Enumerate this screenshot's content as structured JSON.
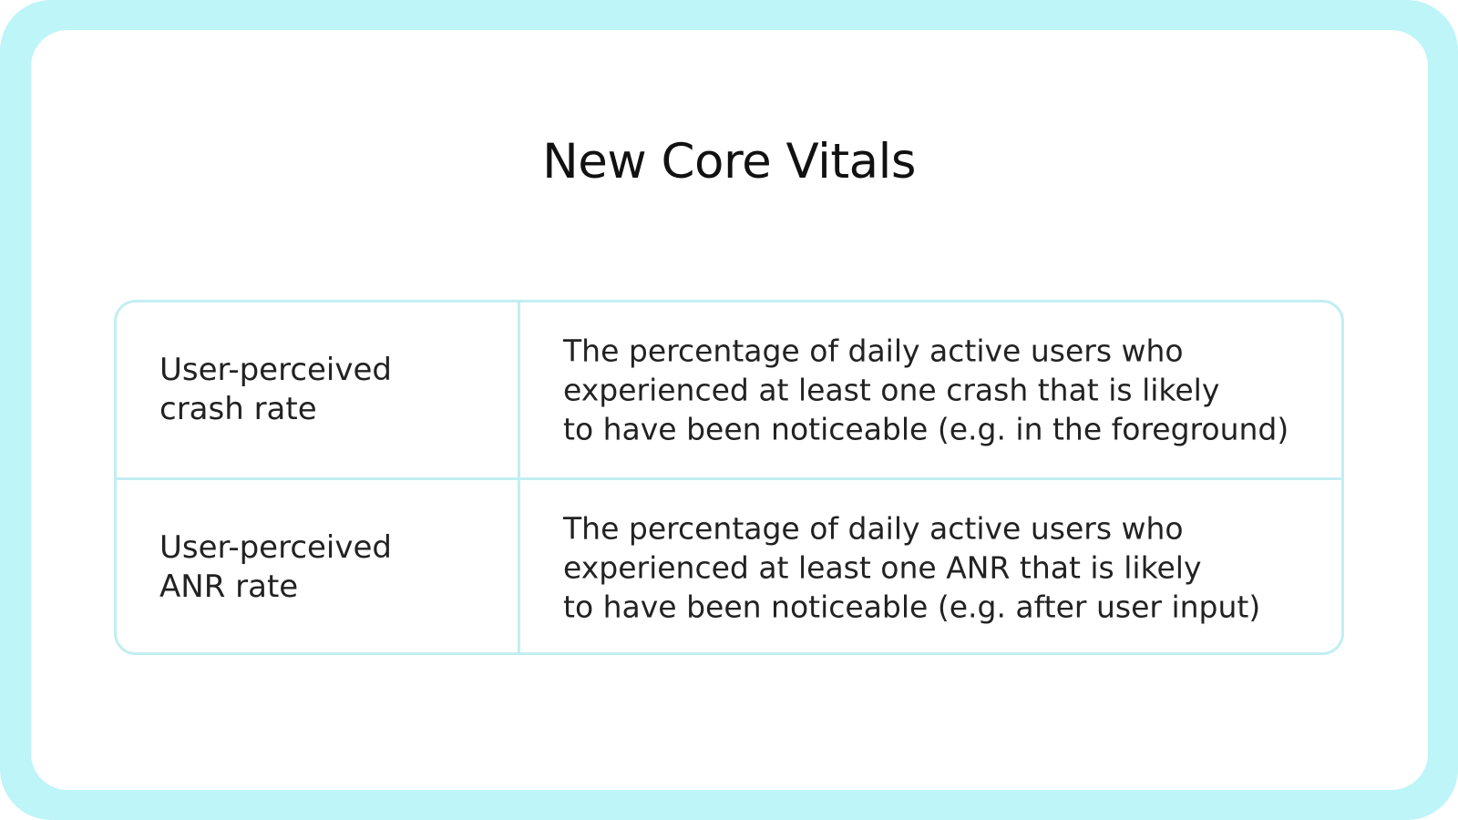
{
  "title": "New Core Vitals",
  "colors": {
    "frame": "#bdf5f8",
    "table_border": "#c2eef3",
    "text": "#222222"
  },
  "rows": [
    {
      "metric": "User-perceived\ncrash rate",
      "description": "The percentage of daily active users who\nexperienced at least one crash that is likely\nto have been noticeable (e.g. in the foreground)"
    },
    {
      "metric": "User-perceived\nANR rate",
      "description": "The percentage of daily active users who\nexperienced at least one ANR that is likely\nto have been noticeable (e.g. after user input)"
    }
  ]
}
